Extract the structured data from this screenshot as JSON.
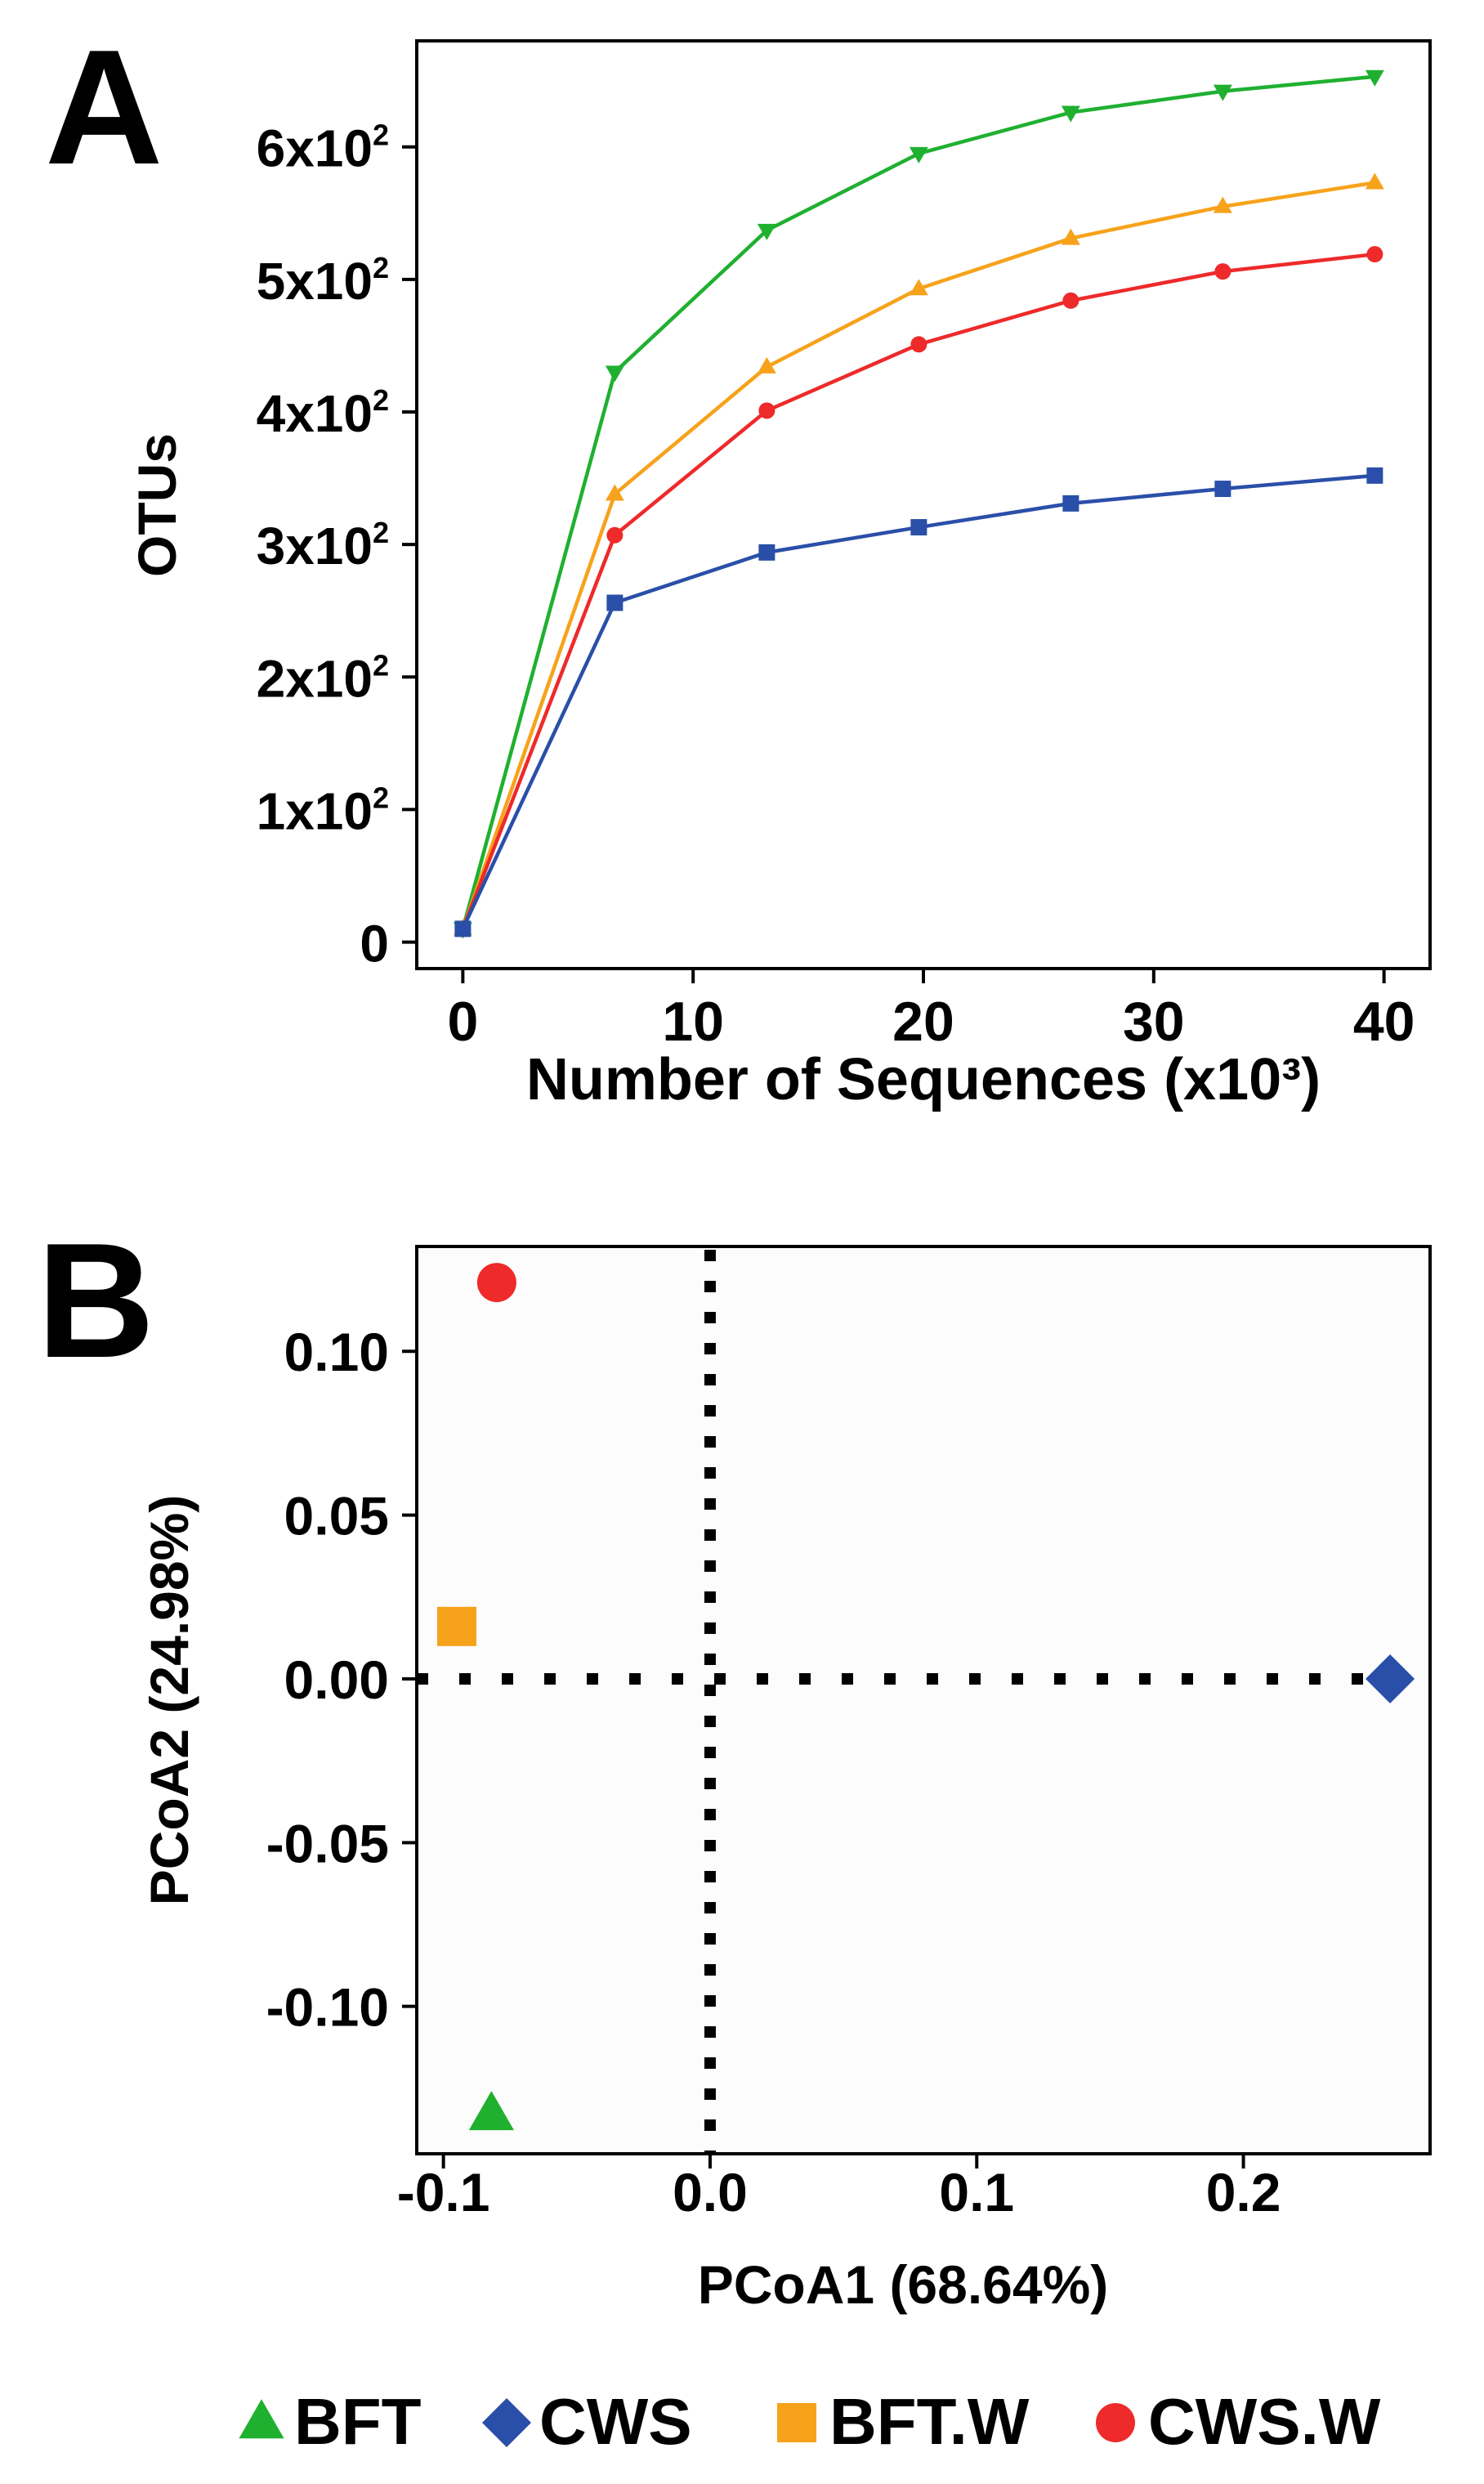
{
  "panel_letters": [
    "A",
    "B"
  ],
  "colors": {
    "BFT": "#1fb030",
    "CWS": "#2a4fa8",
    "BFT.W": "#f7a21b",
    "CWS.W": "#ee2a2a"
  },
  "chart_data": [
    {
      "type": "line",
      "panel": "A",
      "title": "",
      "xlabel": "Number of Sequences (x10³)",
      "ylabel": "OTUs",
      "xlim": [
        -2,
        42
      ],
      "ylim": [
        -20,
        680
      ],
      "xticks": [
        0,
        10,
        20,
        30,
        40
      ],
      "xtick_labels": [
        "0",
        "10",
        "20",
        "30",
        "40"
      ],
      "yticks": [
        0,
        100,
        200,
        300,
        400,
        500,
        600
      ],
      "ytick_labels": [
        {
          "base": "0",
          "exp": ""
        },
        {
          "base": "1x10",
          "exp": "2"
        },
        {
          "base": "2x10",
          "exp": "2"
        },
        {
          "base": "3x10",
          "exp": "2"
        },
        {
          "base": "4x10",
          "exp": "2"
        },
        {
          "base": "5x10",
          "exp": "2"
        },
        {
          "base": "6x10",
          "exp": "2"
        }
      ],
      "x": [
        0,
        6.6,
        13.2,
        19.8,
        26.4,
        33.0,
        39.6
      ],
      "series": [
        {
          "name": "BFT",
          "marker": "triangle-down",
          "values": [
            10,
            430,
            537,
            595,
            626,
            642,
            653
          ]
        },
        {
          "name": "BFT.W",
          "marker": "triangle-up",
          "values": [
            10,
            338,
            434,
            493,
            531,
            555,
            573
          ]
        },
        {
          "name": "CWS.W",
          "marker": "circle",
          "values": [
            10,
            307,
            401,
            451,
            484,
            506,
            519
          ]
        },
        {
          "name": "CWS",
          "marker": "square",
          "values": [
            10,
            256,
            294,
            313,
            331,
            342,
            352
          ]
        }
      ]
    },
    {
      "type": "scatter",
      "panel": "B",
      "title": "",
      "xlabel": "PCoA1 (68.64%)",
      "ylabel": "PCoA2 (24.98%)",
      "xlim": [
        -0.11,
        0.27
      ],
      "ylim": [
        -0.145,
        0.132
      ],
      "xticks": [
        -0.1,
        0.0,
        0.1,
        0.2
      ],
      "xtick_labels": [
        "-0.1",
        "0.0",
        "0.1",
        "0.2"
      ],
      "yticks": [
        -0.1,
        -0.05,
        0.0,
        0.05,
        0.1
      ],
      "ytick_labels": [
        "-0.10",
        "-0.05",
        "0.00",
        "0.05",
        "0.10"
      ],
      "reference_lines": {
        "x": 0,
        "y": 0,
        "style": "dotted"
      },
      "points": [
        {
          "name": "BFT",
          "marker": "triangle",
          "x": -0.082,
          "y": -0.133
        },
        {
          "name": "CWS",
          "marker": "diamond",
          "x": 0.255,
          "y": 0.0
        },
        {
          "name": "BFT.W",
          "marker": "square",
          "x": -0.095,
          "y": 0.016
        },
        {
          "name": "CWS.W",
          "marker": "circle",
          "x": -0.08,
          "y": 0.121
        }
      ]
    }
  ],
  "legend": {
    "placement": "bottom",
    "items": [
      {
        "name": "BFT",
        "marker": "triangle"
      },
      {
        "name": "CWS",
        "marker": "diamond"
      },
      {
        "name": "BFT.W",
        "marker": "square"
      },
      {
        "name": "CWS.W",
        "marker": "circle"
      }
    ]
  }
}
